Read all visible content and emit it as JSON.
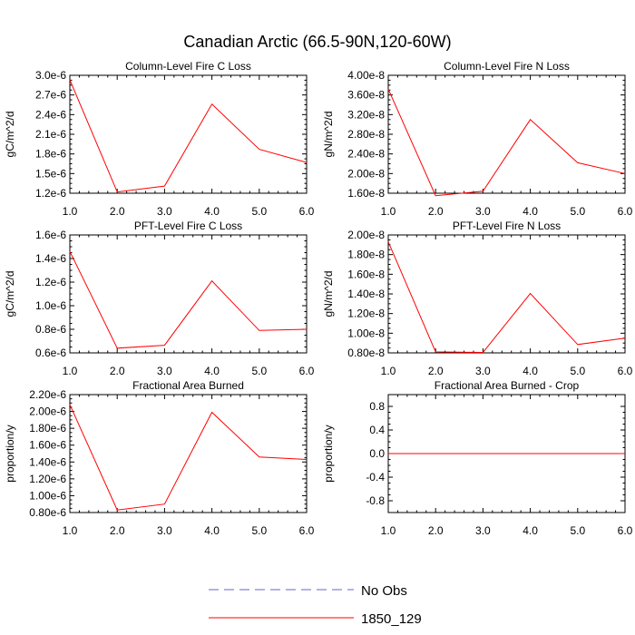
{
  "figure": {
    "title": "Canadian Arctic (66.5-90N,120-60W)"
  },
  "chart_data": [
    {
      "type": "line",
      "title": "Column-Level Fire C Loss",
      "ylabel": "gC/m^2/d",
      "x": [
        1,
        2,
        3,
        4,
        5,
        6
      ],
      "xlim": [
        1,
        6
      ],
      "xticks": [
        "1.0",
        "2.0",
        "3.0",
        "4.0",
        "5.0",
        "6.0"
      ],
      "ylim": [
        1.2e-06,
        3e-06
      ],
      "yticks": [
        {
          "v": 1.2e-06,
          "label": "1.2e-6"
        },
        {
          "v": 1.5e-06,
          "label": "1.5e-6"
        },
        {
          "v": 1.8e-06,
          "label": "1.8e-6"
        },
        {
          "v": 2.1e-06,
          "label": "2.1e-6"
        },
        {
          "v": 2.4e-06,
          "label": "2.4e-6"
        },
        {
          "v": 2.7e-06,
          "label": "2.7e-6"
        },
        {
          "v": 3e-06,
          "label": "3.0e-6"
        }
      ],
      "series": [
        {
          "name": "1850_129",
          "color": "#ff0000",
          "values": [
            2.93e-06,
            1.22e-06,
            1.31e-06,
            2.56e-06,
            1.87e-06,
            1.67e-06
          ]
        }
      ]
    },
    {
      "type": "line",
      "title": "Column-Level Fire N Loss",
      "ylabel": "gN/m^2/d",
      "x": [
        1,
        2,
        3,
        4,
        5,
        6
      ],
      "xlim": [
        1,
        6
      ],
      "xticks": [
        "1.0",
        "2.0",
        "3.0",
        "4.0",
        "5.0",
        "6.0"
      ],
      "ylim": [
        1.6e-08,
        4e-08
      ],
      "yticks": [
        {
          "v": 1.6e-08,
          "label": "1.60e-8"
        },
        {
          "v": 2e-08,
          "label": "2.00e-8"
        },
        {
          "v": 2.4e-08,
          "label": "2.40e-8"
        },
        {
          "v": 2.8e-08,
          "label": "2.80e-8"
        },
        {
          "v": 3.2e-08,
          "label": "3.20e-8"
        },
        {
          "v": 3.6e-08,
          "label": "3.60e-8"
        },
        {
          "v": 4e-08,
          "label": "4.00e-8"
        }
      ],
      "series": [
        {
          "name": "1850_129",
          "color": "#ff0000",
          "values": [
            3.72e-08,
            1.55e-08,
            1.64e-08,
            3.1e-08,
            2.22e-08,
            2e-08
          ]
        }
      ]
    },
    {
      "type": "line",
      "title": "PFT-Level Fire C Loss",
      "ylabel": "gC/m^2/d",
      "x": [
        1,
        2,
        3,
        4,
        5,
        6
      ],
      "xlim": [
        1,
        6
      ],
      "xticks": [
        "1.0",
        "2.0",
        "3.0",
        "4.0",
        "5.0",
        "6.0"
      ],
      "ylim": [
        6e-07,
        1.6e-06
      ],
      "yticks": [
        {
          "v": 6e-07,
          "label": "0.6e-6"
        },
        {
          "v": 8e-07,
          "label": "0.8e-6"
        },
        {
          "v": 1e-06,
          "label": "1.0e-6"
        },
        {
          "v": 1.2e-06,
          "label": "1.2e-6"
        },
        {
          "v": 1.4e-06,
          "label": "1.4e-6"
        },
        {
          "v": 1.6e-06,
          "label": "1.6e-6"
        }
      ],
      "series": [
        {
          "name": "1850_129",
          "color": "#ff0000",
          "values": [
            1.46e-06,
            6.4e-07,
            6.65e-07,
            1.21e-06,
            7.9e-07,
            8e-07
          ]
        }
      ]
    },
    {
      "type": "line",
      "title": "PFT-Level Fire N Loss",
      "ylabel": "gN/m^2/d",
      "x": [
        1,
        2,
        3,
        4,
        5,
        6
      ],
      "xlim": [
        1,
        6
      ],
      "xticks": [
        "1.0",
        "2.0",
        "3.0",
        "4.0",
        "5.0",
        "6.0"
      ],
      "ylim": [
        8e-09,
        2e-08
      ],
      "yticks": [
        {
          "v": 8e-09,
          "label": "0.80e-8"
        },
        {
          "v": 1e-08,
          "label": "1.00e-8"
        },
        {
          "v": 1.2e-08,
          "label": "1.20e-8"
        },
        {
          "v": 1.4e-08,
          "label": "1.40e-8"
        },
        {
          "v": 1.6e-08,
          "label": "1.60e-8"
        },
        {
          "v": 1.8e-08,
          "label": "1.80e-8"
        },
        {
          "v": 2e-08,
          "label": "2.00e-8"
        }
      ],
      "series": [
        {
          "name": "1850_129",
          "color": "#ff0000",
          "values": [
            1.93e-08,
            8.1e-09,
            8.05e-09,
            1.405e-08,
            8.85e-09,
            9.5e-09
          ]
        }
      ]
    },
    {
      "type": "line",
      "title": "Fractional Area Burned",
      "ylabel": "proportion/y",
      "x": [
        1,
        2,
        3,
        4,
        5,
        6
      ],
      "xlim": [
        1,
        6
      ],
      "xticks": [
        "1.0",
        "2.0",
        "3.0",
        "4.0",
        "5.0",
        "6.0"
      ],
      "ylim": [
        8e-07,
        2.2e-06
      ],
      "yticks": [
        {
          "v": 8e-07,
          "label": "0.80e-6"
        },
        {
          "v": 1e-06,
          "label": "1.00e-6"
        },
        {
          "v": 1.2e-06,
          "label": "1.20e-6"
        },
        {
          "v": 1.4e-06,
          "label": "1.40e-6"
        },
        {
          "v": 1.6e-06,
          "label": "1.60e-6"
        },
        {
          "v": 1.8e-06,
          "label": "1.80e-6"
        },
        {
          "v": 2e-06,
          "label": "2.00e-6"
        },
        {
          "v": 2.2e-06,
          "label": "2.20e-6"
        }
      ],
      "series": [
        {
          "name": "1850_129",
          "color": "#ff0000",
          "values": [
            2.08e-06,
            8.3e-07,
            9e-07,
            1.99e-06,
            1.46e-06,
            1.43e-06
          ]
        }
      ]
    },
    {
      "type": "line",
      "title": "Fractional Area Burned - Crop",
      "ylabel": "proportion/y",
      "x": [
        1,
        2,
        3,
        4,
        5,
        6
      ],
      "xlim": [
        1,
        6
      ],
      "xticks": [
        "1.0",
        "2.0",
        "3.0",
        "4.0",
        "5.0",
        "6.0"
      ],
      "ylim": [
        -1.0,
        1.0
      ],
      "yticks": [
        {
          "v": -0.8,
          "label": "-0.8"
        },
        {
          "v": -0.4,
          "label": "-0.4"
        },
        {
          "v": 0.0,
          "label": "0.0"
        },
        {
          "v": 0.4,
          "label": "0.4"
        },
        {
          "v": 0.8,
          "label": "0.8"
        }
      ],
      "series": [
        {
          "name": "1850_129",
          "color": "#ff0000",
          "values": [
            0,
            0,
            0,
            0,
            0,
            0
          ]
        }
      ]
    }
  ],
  "legend": {
    "items": [
      {
        "label": "No Obs",
        "color": "#6666cc",
        "dash": true
      },
      {
        "label": "1850_129",
        "color": "#ff0000",
        "dash": false
      }
    ]
  }
}
